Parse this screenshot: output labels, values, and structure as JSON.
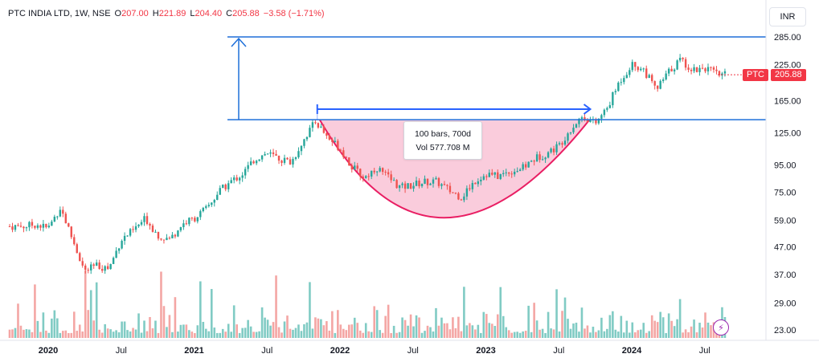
{
  "header": {
    "symbol_line": "PTC INDIA LTD, 1W, NSE",
    "open_label": "O",
    "open": "207.00",
    "high_label": "H",
    "high": "221.89",
    "low_label": "L",
    "low": "204.40",
    "close_label": "C",
    "close": "205.88",
    "change": "−3.58 (−1.71%)"
  },
  "currency_button": "INR",
  "ticker_badge": {
    "symbol": "PTC",
    "value": "205.88"
  },
  "tooltip": {
    "bars": "100 bars, 700d",
    "volume": "Vol 577.708 M"
  },
  "colors": {
    "up": "#26a69a",
    "down": "#ef5350",
    "blue": "#2962ff",
    "line": "#1e6fd9",
    "cup_fill": "#f8bbd0",
    "cup_stroke": "#e91e63",
    "badge": "#f23645"
  },
  "icons": {
    "alert": "lightning-icon"
  },
  "chart_data": {
    "type": "candlestick",
    "interval": "1W",
    "scale": "log",
    "y_ticks": [
      "285.00",
      "225.00",
      "165.00",
      "125.00",
      "95.00",
      "75.00",
      "59.00",
      "47.00",
      "37.00",
      "29.00",
      "23.00"
    ],
    "x_ticks": [
      "2020",
      "Jul",
      "2021",
      "Jul",
      "2022",
      "Jul",
      "2023",
      "Jul",
      "2024",
      "Jul"
    ],
    "ylim": [
      21,
      300
    ],
    "horizontal_levels": [
      285,
      140
    ],
    "last_price": 205.88,
    "pattern": "cup",
    "measure": {
      "bars": 100,
      "days": 700
    },
    "price_path": [
      [
        "2019-11",
        56
      ],
      [
        "2019-12",
        57
      ],
      [
        "2020-01",
        55
      ],
      [
        "2020-02",
        66
      ],
      [
        "2020-03",
        50
      ],
      [
        "2020-04",
        38
      ],
      [
        "2020-05",
        40
      ],
      [
        "2020-06",
        39
      ],
      [
        "2020-07",
        50
      ],
      [
        "2020-08",
        54
      ],
      [
        "2020-09",
        60
      ],
      [
        "2020-10",
        52
      ],
      [
        "2020-11",
        50
      ],
      [
        "2020-12",
        57
      ],
      [
        "2021-01",
        60
      ],
      [
        "2021-02",
        65
      ],
      [
        "2021-03",
        75
      ],
      [
        "2021-04",
        82
      ],
      [
        "2021-05",
        88
      ],
      [
        "2021-06",
        100
      ],
      [
        "2021-07",
        105
      ],
      [
        "2021-08",
        100
      ],
      [
        "2021-09",
        97
      ],
      [
        "2021-10",
        118
      ],
      [
        "2021-11",
        138
      ],
      [
        "2021-12",
        120
      ],
      [
        "2022-01",
        110
      ],
      [
        "2022-02",
        93
      ],
      [
        "2022-03",
        85
      ],
      [
        "2022-04",
        93
      ],
      [
        "2022-05",
        85
      ],
      [
        "2022-06",
        78
      ],
      [
        "2022-07",
        80
      ],
      [
        "2022-08",
        82
      ],
      [
        "2022-09",
        82
      ],
      [
        "2022-10",
        76
      ],
      [
        "2022-11",
        72
      ],
      [
        "2022-12",
        82
      ],
      [
        "2023-01",
        88
      ],
      [
        "2023-02",
        86
      ],
      [
        "2023-03",
        90
      ],
      [
        "2023-04",
        92
      ],
      [
        "2023-05",
        100
      ],
      [
        "2023-06",
        105
      ],
      [
        "2023-07",
        112
      ],
      [
        "2023-08",
        130
      ],
      [
        "2023-09",
        145
      ],
      [
        "2023-10",
        135
      ],
      [
        "2023-11",
        155
      ],
      [
        "2023-12",
        195
      ],
      [
        "2024-01",
        225
      ],
      [
        "2024-02",
        215
      ],
      [
        "2024-03",
        180
      ],
      [
        "2024-04",
        210
      ],
      [
        "2024-05",
        235
      ],
      [
        "2024-06",
        215
      ],
      [
        "2024-07",
        220
      ],
      [
        "2024-08",
        206
      ]
    ]
  }
}
